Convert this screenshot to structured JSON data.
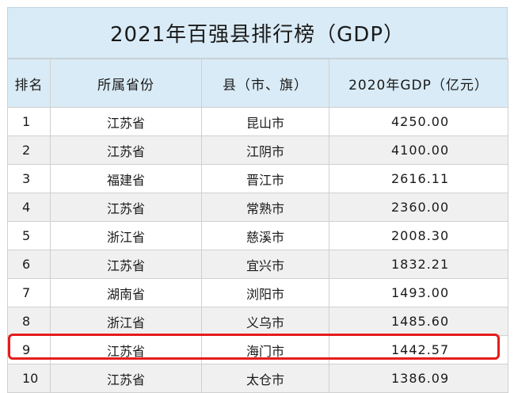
{
  "title": "2021年百强县排行榜（GDP）",
  "headers": {
    "rank": "排名",
    "province": "所属省份",
    "county": "县（市、旗）",
    "gdp": "2020年GDP（亿元）"
  },
  "rows": [
    {
      "rank": "1",
      "province": "江苏省",
      "county": "昆山市",
      "gdp": "4250.00"
    },
    {
      "rank": "2",
      "province": "江苏省",
      "county": "江阴市",
      "gdp": "4100.00"
    },
    {
      "rank": "3",
      "province": "福建省",
      "county": "晋江市",
      "gdp": "2616.11"
    },
    {
      "rank": "4",
      "province": "江苏省",
      "county": "常熟市",
      "gdp": "2360.00"
    },
    {
      "rank": "5",
      "province": "浙江省",
      "county": "慈溪市",
      "gdp": "2008.30"
    },
    {
      "rank": "6",
      "province": "江苏省",
      "county": "宜兴市",
      "gdp": "1832.21"
    },
    {
      "rank": "7",
      "province": "湖南省",
      "county": "浏阳市",
      "gdp": "1493.00"
    },
    {
      "rank": "8",
      "province": "浙江省",
      "county": "义乌市",
      "gdp": "1485.60"
    },
    {
      "rank": "9",
      "province": "江苏省",
      "county": "海门市",
      "gdp": "1442.57"
    },
    {
      "rank": "10",
      "province": "江苏省",
      "county": "太仓市",
      "gdp": "1386.09"
    }
  ],
  "highlighted_rank": "9",
  "colors": {
    "header_bg": "#d9ebf6",
    "highlight_border": "#e51c1c",
    "stripe": "#f0f0f0"
  }
}
